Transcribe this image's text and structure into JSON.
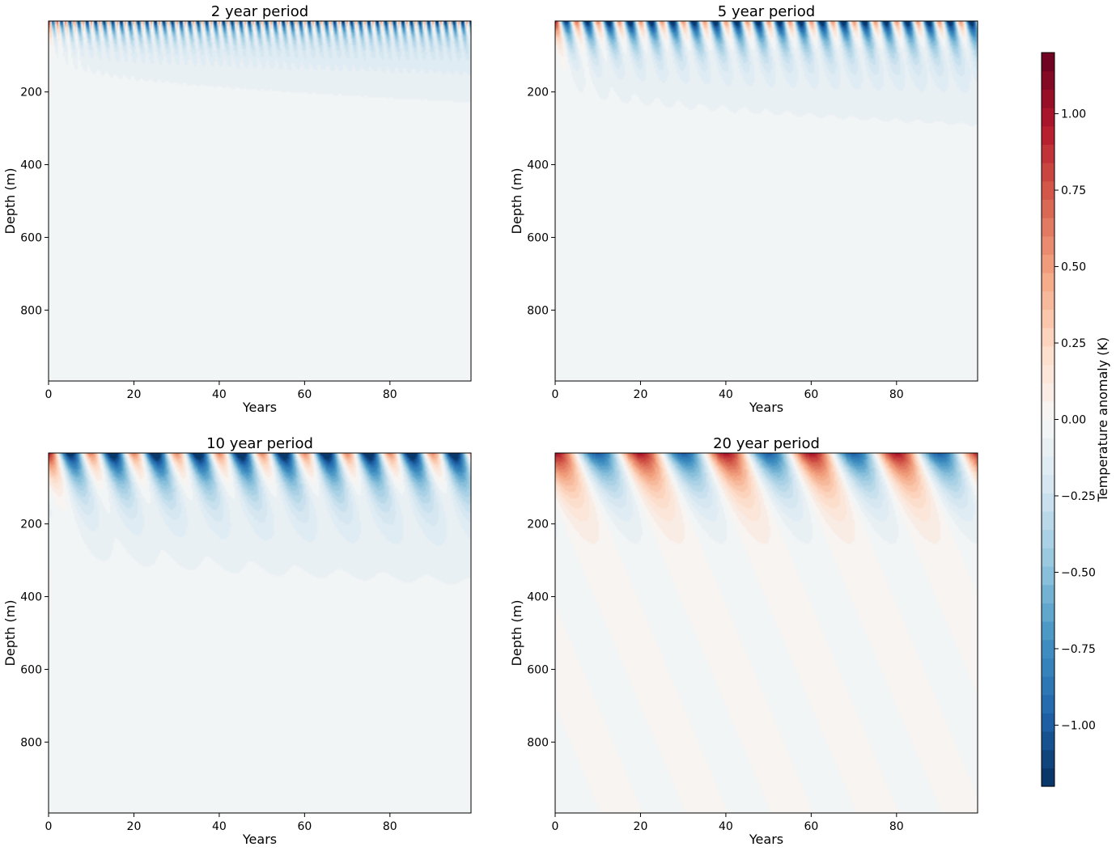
{
  "chart_data": [
    {
      "type": "heatmap",
      "title": "2 year period",
      "period_years": 2,
      "xlabel": "Years",
      "ylabel": "Depth (m)",
      "xlim": [
        0,
        99
      ],
      "ylim": [
        995,
        5
      ],
      "y_inverted": true,
      "xticks": [
        0,
        20,
        40,
        60,
        80
      ],
      "yticks": [
        200,
        400,
        600,
        800
      ]
    },
    {
      "type": "heatmap",
      "title": "5 year period",
      "period_years": 5,
      "xlabel": "Years",
      "ylabel": "Depth (m)",
      "xlim": [
        0,
        99
      ],
      "ylim": [
        995,
        5
      ],
      "y_inverted": true,
      "xticks": [
        0,
        20,
        40,
        60,
        80
      ],
      "yticks": [
        200,
        400,
        600,
        800
      ]
    },
    {
      "type": "heatmap",
      "title": "10 year period",
      "period_years": 10,
      "xlabel": "Years",
      "ylabel": "Depth (m)",
      "xlim": [
        0,
        99
      ],
      "ylim": [
        995,
        5
      ],
      "y_inverted": true,
      "xticks": [
        0,
        20,
        40,
        60,
        80
      ],
      "yticks": [
        200,
        400,
        600,
        800
      ]
    },
    {
      "type": "heatmap",
      "title": "20 year period",
      "period_years": 20,
      "xlabel": "Years",
      "ylabel": "Depth (m)",
      "xlim": [
        0,
        99
      ],
      "ylim": [
        995,
        5
      ],
      "y_inverted": true,
      "xticks": [
        0,
        20,
        40,
        60,
        80
      ],
      "yticks": [
        200,
        400,
        600,
        800
      ]
    }
  ],
  "colorbar": {
    "label": "Temperature anomaly (K)",
    "range": [
      -1.2,
      1.2
    ],
    "ticks": [
      "1.00",
      "0.75",
      "0.50",
      "0.25",
      "0.00",
      "−0.25",
      "−0.50",
      "−0.75",
      "−1.00"
    ],
    "tick_values": [
      1.0,
      0.75,
      0.5,
      0.25,
      0.0,
      -0.25,
      -0.5,
      -0.75,
      -1.0
    ],
    "levels": 40,
    "colormap": "RdBu_r",
    "colors": [
      "#053061",
      "#2166ac",
      "#4393c3",
      "#92c5de",
      "#d1e5f0",
      "#f7f7f7",
      "#fddbc7",
      "#f4a582",
      "#d6604d",
      "#b2182b",
      "#67001f"
    ]
  }
}
